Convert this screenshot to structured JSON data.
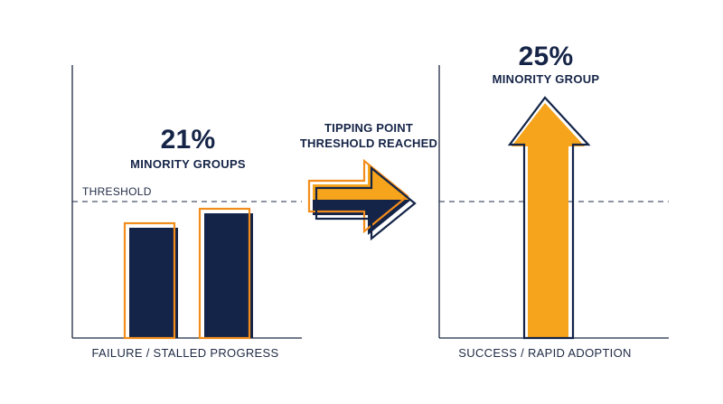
{
  "left_panel": {
    "percent": "21%",
    "subtitle": "MINORITY GROUPS",
    "threshold_label": "THRESHOLD",
    "bottom_label": "FAILURE / STALLED PROGRESS"
  },
  "center": {
    "line1": "TIPPING POINT",
    "line2": "THRESHOLD REACHED"
  },
  "right_panel": {
    "percent": "25%",
    "subtitle": "MINORITY GROUP",
    "bottom_label": "SUCCESS / RAPID ADOPTION"
  },
  "colors": {
    "navy": "#132448",
    "orange": "#f6a41b",
    "orange_outline": "#f28d1b"
  }
}
